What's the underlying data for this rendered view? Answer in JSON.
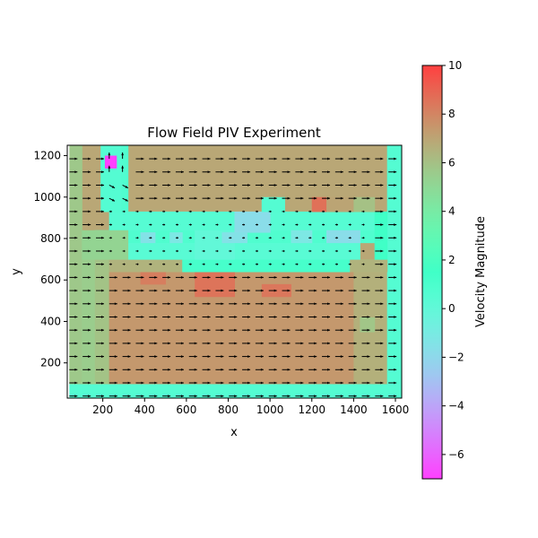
{
  "chart_data": {
    "type": "heatmap",
    "subtype": "quiver-overlay",
    "title": "Flow Field PIV Experiment",
    "xlabel": "x",
    "ylabel": "y",
    "xlim": [
      30,
      1630
    ],
    "ylim": [
      30,
      1250
    ],
    "xticks": [
      200,
      400,
      600,
      800,
      1000,
      1200,
      1400,
      1600
    ],
    "yticks": [
      200,
      400,
      600,
      800,
      1000,
      1200
    ],
    "colorbar": {
      "label": "Velocity Magnitude",
      "range": [
        -7,
        10
      ],
      "ticks": [
        -6,
        -4,
        -2,
        0,
        2,
        4,
        6,
        8,
        10
      ],
      "colormap": "rainbow",
      "alpha": 0.75
    },
    "grid": {
      "x0": 40,
      "dx": 63.6,
      "nx": 25,
      "y0": 40,
      "dy": 63.6,
      "ny": 19
    },
    "regions": [
      {
        "x": [
          40,
          1630
        ],
        "y": [
          30,
          100
        ],
        "value": 0.6
      },
      {
        "x": [
          100,
          1560
        ],
        "y": [
          100,
          1250
        ],
        "value": 6.9
      },
      {
        "x": [
          40,
          230
        ],
        "y": [
          100,
          700
        ],
        "value": 5.9
      },
      {
        "x": [
          230,
          1400
        ],
        "y": [
          100,
          640
        ],
        "value": 7.4
      },
      {
        "x": [
          40,
          100
        ],
        "y": [
          100,
          1250
        ],
        "value": 5.7
      },
      {
        "x": [
          1400,
          1560
        ],
        "y": [
          100,
          700
        ],
        "value": 6.6
      },
      {
        "x": [
          1560,
          1630
        ],
        "y": [
          100,
          1250
        ],
        "value": 0.6
      },
      {
        "x": [
          1430,
          1500
        ],
        "y": [
          350,
          420
        ],
        "value": 5.8
      },
      {
        "x": [
          100,
          160
        ],
        "y": [
          100,
          800
        ],
        "value": 5.5
      },
      {
        "x": [
          380,
          500
        ],
        "y": [
          580,
          700
        ],
        "value": 8.2
      },
      {
        "x": [
          640,
          830
        ],
        "y": [
          520,
          640
        ],
        "value": 8.5
      },
      {
        "x": [
          960,
          1100
        ],
        "y": [
          520,
          580
        ],
        "value": 8.4
      },
      {
        "x": [
          230,
          1560
        ],
        "y": [
          640,
          700
        ],
        "value": 6.5
      },
      {
        "x": [
          580,
          1380
        ],
        "y": [
          640,
          700
        ],
        "value": 1.2
      },
      {
        "x": [
          320,
          1430
        ],
        "y": [
          700,
          780
        ],
        "value": 0.4
      },
      {
        "x": [
          160,
          1500
        ],
        "y": [
          780,
          840
        ],
        "value": 0.8
      },
      {
        "x": [
          230,
          1500
        ],
        "y": [
          840,
          930
        ],
        "value": 0.5
      },
      {
        "x": [
          1500,
          1560
        ],
        "y": [
          700,
          930
        ],
        "value": 1.5
      },
      {
        "x": [
          100,
          320
        ],
        "y": [
          700,
          840
        ],
        "value": 5.2
      },
      {
        "x": [
          380,
          450
        ],
        "y": [
          780,
          830
        ],
        "value": -1.5
      },
      {
        "x": [
          520,
          580
        ],
        "y": [
          780,
          830
        ],
        "value": -1.2
      },
      {
        "x": [
          640,
          830
        ],
        "y": [
          700,
          840
        ],
        "value": 0.0
      },
      {
        "x": [
          830,
          1000
        ],
        "y": [
          830,
          930
        ],
        "value": -1.8
      },
      {
        "x": [
          770,
          890
        ],
        "y": [
          780,
          830
        ],
        "value": -1.5
      },
      {
        "x": [
          1100,
          1200
        ],
        "y": [
          780,
          840
        ],
        "value": -1.2
      },
      {
        "x": [
          1270,
          1430
        ],
        "y": [
          780,
          840
        ],
        "value": -1.8
      },
      {
        "x": [
          960,
          1070
        ],
        "y": [
          930,
          1000
        ],
        "value": 0.6
      },
      {
        "x": [
          1200,
          1270
        ],
        "y": [
          930,
          1000
        ],
        "value": 8.6
      },
      {
        "x": [
          1270,
          1400
        ],
        "y": [
          930,
          1000
        ],
        "value": 7.0
      },
      {
        "x": [
          1400,
          1500
        ],
        "y": [
          930,
          1000
        ],
        "value": 6.0
      },
      {
        "x": [
          190,
          320
        ],
        "y": [
          930,
          1250
        ],
        "value": 0.6
      },
      {
        "x": [
          190,
          260
        ],
        "y": [
          1000,
          1250
        ],
        "value": 0.6
      },
      {
        "x": [
          290,
          320
        ],
        "y": [
          930,
          1250
        ],
        "value": 0.8
      },
      {
        "x": [
          210,
          265
        ],
        "y": [
          1140,
          1200
        ],
        "value": -7.0
      }
    ]
  }
}
